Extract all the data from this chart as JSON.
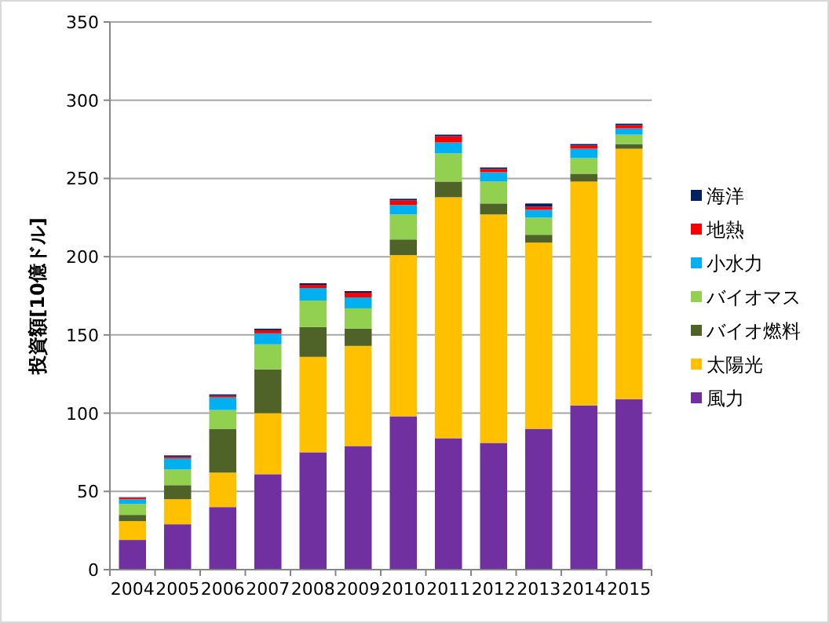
{
  "chart_data": {
    "type": "bar",
    "stacked": true,
    "ylabel": "投資額[10億ドル]",
    "categories": [
      "2004",
      "2005",
      "2006",
      "2007",
      "2008",
      "2009",
      "2010",
      "2011",
      "2012",
      "2013",
      "2014",
      "2015"
    ],
    "ylim": [
      0,
      350
    ],
    "yticks": [
      0,
      50,
      100,
      150,
      200,
      250,
      300,
      350
    ],
    "grid": "y",
    "legend": "right",
    "series": [
      {
        "name": "風力",
        "color": "#7030a0",
        "values": [
          19,
          29,
          40,
          61,
          75,
          79,
          98,
          84,
          81,
          90,
          105,
          109
        ]
      },
      {
        "name": "太陽光",
        "color": "#ffc000",
        "values": [
          12,
          16,
          22,
          39,
          61,
          64,
          103,
          154,
          146,
          119,
          143,
          160
        ]
      },
      {
        "name": "バイオ燃料",
        "color": "#4f6228",
        "values": [
          4,
          9,
          28,
          28,
          19,
          11,
          10,
          10,
          7,
          5,
          5,
          3
        ]
      },
      {
        "name": "バイオマス",
        "color": "#92d050",
        "values": [
          7,
          10,
          12,
          16,
          17,
          13,
          16,
          18,
          14,
          11,
          10,
          6
        ]
      },
      {
        "name": "小水力",
        "color": "#00b0f0",
        "values": [
          3,
          7,
          8,
          7,
          8,
          7,
          6,
          7,
          6,
          5,
          6,
          4
        ]
      },
      {
        "name": "地熱",
        "color": "#ff0000",
        "values": [
          1,
          1,
          1,
          2,
          2,
          3,
          3,
          4,
          2,
          2,
          2,
          2
        ]
      },
      {
        "name": "海洋",
        "color": "#002060",
        "values": [
          0.3,
          1,
          1,
          1,
          1,
          1,
          1,
          1,
          1,
          2,
          1,
          1
        ]
      }
    ]
  }
}
